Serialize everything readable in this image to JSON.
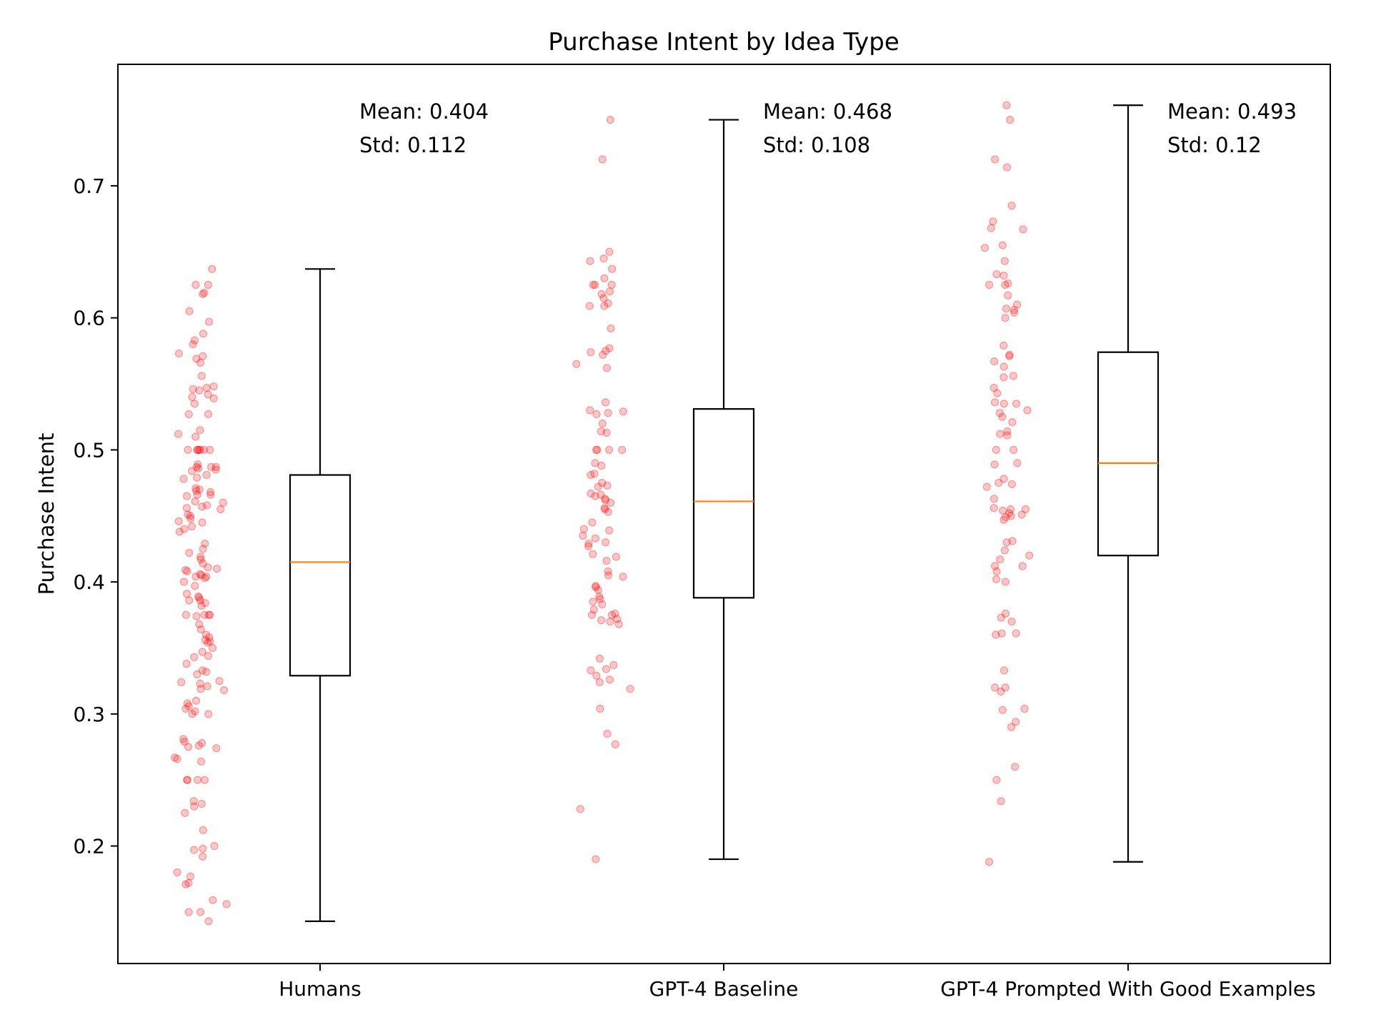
{
  "chart_data": {
    "type": "box",
    "title": "Purchase Intent by Idea Type",
    "xlabel": "",
    "ylabel": "Purchase Intent",
    "ylim": [
      0.111,
      0.792
    ],
    "yticks": [
      "0.2",
      "0.3",
      "0.4",
      "0.5",
      "0.6",
      "0.7"
    ],
    "grid": false,
    "colors": {
      "box": "#000000",
      "median": "#ff7f0e",
      "points": "#ff0000"
    },
    "categories": [
      "Humans",
      "GPT-4 Baseline",
      "GPT-4 Prompted With Good Examples"
    ],
    "boxes": [
      {
        "name": "Humans",
        "whisker_low": 0.143,
        "q1": 0.329,
        "median": 0.415,
        "q3": 0.481,
        "whisker_high": 0.637,
        "mean_label": "Mean: 0.404",
        "std_label": "Std: 0.112"
      },
      {
        "name": "GPT-4 Baseline",
        "whisker_low": 0.19,
        "q1": 0.388,
        "median": 0.461,
        "q3": 0.531,
        "whisker_high": 0.75,
        "mean_label": "Mean: 0.468",
        "std_label": "Std: 0.108"
      },
      {
        "name": "GPT-4 Prompted With Good Examples",
        "whisker_low": 0.188,
        "q1": 0.42,
        "median": 0.49,
        "q3": 0.574,
        "whisker_high": 0.761,
        "mean_label": "Mean: 0.493",
        "std_label": "Std: 0.12"
      }
    ],
    "points": [
      [
        0.637,
        0.625,
        0.625,
        0.619,
        0.618,
        0.605,
        0.597,
        0.588,
        0.583,
        0.58,
        0.573,
        0.571,
        0.569,
        0.566,
        0.556,
        0.548,
        0.547,
        0.546,
        0.545,
        0.542,
        0.54,
        0.539,
        0.535,
        0.527,
        0.527,
        0.515,
        0.512,
        0.51,
        0.5,
        0.5,
        0.5,
        0.5,
        0.5,
        0.5,
        0.5,
        0.489,
        0.487,
        0.487,
        0.487,
        0.486,
        0.485,
        0.484,
        0.481,
        0.479,
        0.478,
        0.471,
        0.47,
        0.469,
        0.468,
        0.466,
        0.466,
        0.465,
        0.461,
        0.46,
        0.458,
        0.457,
        0.456,
        0.455,
        0.451,
        0.45,
        0.448,
        0.446,
        0.445,
        0.442,
        0.44,
        0.438,
        0.429,
        0.425,
        0.422,
        0.419,
        0.417,
        0.414,
        0.411,
        0.41,
        0.409,
        0.408,
        0.406,
        0.405,
        0.404,
        0.404,
        0.403,
        0.4,
        0.397,
        0.391,
        0.389,
        0.388,
        0.386,
        0.386,
        0.384,
        0.382,
        0.375,
        0.375,
        0.375,
        0.375,
        0.374,
        0.368,
        0.364,
        0.36,
        0.358,
        0.356,
        0.355,
        0.354,
        0.35,
        0.347,
        0.344,
        0.343,
        0.338,
        0.333,
        0.332,
        0.33,
        0.325,
        0.324,
        0.323,
        0.321,
        0.319,
        0.318,
        0.31,
        0.308,
        0.306,
        0.304,
        0.302,
        0.3,
        0.3,
        0.281,
        0.279,
        0.278,
        0.276,
        0.275,
        0.274,
        0.267,
        0.266,
        0.264,
        0.25,
        0.25,
        0.25,
        0.25,
        0.234,
        0.232,
        0.23,
        0.225,
        0.212,
        0.2,
        0.198,
        0.197,
        0.192,
        0.18,
        0.177,
        0.172,
        0.171,
        0.159,
        0.156,
        0.15,
        0.15,
        0.143
      ],
      [
        0.75,
        0.72,
        0.65,
        0.645,
        0.643,
        0.637,
        0.63,
        0.625,
        0.625,
        0.625,
        0.62,
        0.618,
        0.615,
        0.611,
        0.609,
        0.609,
        0.592,
        0.577,
        0.575,
        0.574,
        0.572,
        0.565,
        0.562,
        0.536,
        0.53,
        0.529,
        0.528,
        0.527,
        0.52,
        0.514,
        0.513,
        0.5,
        0.5,
        0.5,
        0.5,
        0.49,
        0.488,
        0.482,
        0.481,
        0.475,
        0.473,
        0.472,
        0.467,
        0.466,
        0.465,
        0.463,
        0.462,
        0.46,
        0.456,
        0.455,
        0.453,
        0.445,
        0.44,
        0.439,
        0.435,
        0.433,
        0.43,
        0.429,
        0.427,
        0.421,
        0.419,
        0.416,
        0.408,
        0.405,
        0.404,
        0.397,
        0.396,
        0.394,
        0.389,
        0.387,
        0.385,
        0.383,
        0.379,
        0.376,
        0.375,
        0.375,
        0.372,
        0.371,
        0.37,
        0.368,
        0.342,
        0.337,
        0.334,
        0.333,
        0.329,
        0.326,
        0.324,
        0.319,
        0.304,
        0.285,
        0.277,
        0.228,
        0.19
      ],
      [
        0.761,
        0.75,
        0.72,
        0.714,
        0.685,
        0.673,
        0.668,
        0.667,
        0.655,
        0.653,
        0.643,
        0.633,
        0.632,
        0.626,
        0.625,
        0.625,
        0.617,
        0.61,
        0.607,
        0.606,
        0.604,
        0.6,
        0.579,
        0.572,
        0.571,
        0.567,
        0.563,
        0.556,
        0.555,
        0.547,
        0.543,
        0.536,
        0.535,
        0.535,
        0.53,
        0.528,
        0.525,
        0.521,
        0.514,
        0.512,
        0.511,
        0.5,
        0.5,
        0.49,
        0.489,
        0.478,
        0.475,
        0.474,
        0.472,
        0.463,
        0.456,
        0.455,
        0.455,
        0.454,
        0.452,
        0.451,
        0.45,
        0.449,
        0.447,
        0.431,
        0.43,
        0.424,
        0.42,
        0.417,
        0.412,
        0.412,
        0.408,
        0.402,
        0.4,
        0.376,
        0.373,
        0.37,
        0.361,
        0.361,
        0.36,
        0.333,
        0.32,
        0.32,
        0.317,
        0.304,
        0.303,
        0.294,
        0.29,
        0.26,
        0.25,
        0.234,
        0.188
      ]
    ]
  }
}
